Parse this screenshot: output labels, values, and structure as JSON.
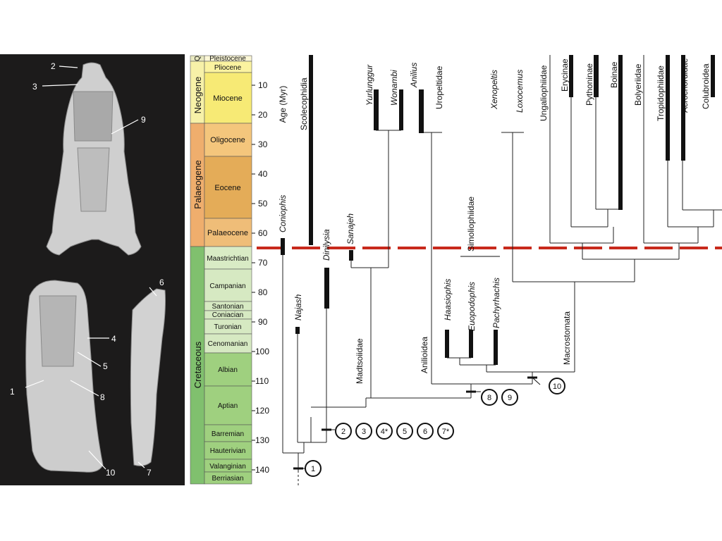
{
  "skull_panel": {
    "labels": [
      "1",
      "2",
      "3",
      "4",
      "5",
      "6",
      "7",
      "8",
      "9",
      "10"
    ]
  },
  "timescale": {
    "periods": [
      "Neogene",
      "Palaeogene",
      "Cretaceous"
    ],
    "q_label": "Q",
    "epochs": [
      "Pleistocene",
      "Pliocene",
      "Miocene",
      "Oligocene",
      "Eocene",
      "Palaeocene"
    ],
    "stages": [
      "Maastrichtian",
      "Campanian",
      "Santonian",
      "Coniacian",
      "Turonian",
      "Cenomanian",
      "Albian",
      "Aptian",
      "Barremian",
      "Hauterivian",
      "Valanginian",
      "Berriasian"
    ],
    "ticks": [
      "10",
      "20",
      "30",
      "40",
      "50",
      "60",
      "70",
      "80",
      "90",
      "100",
      "110",
      "120",
      "130",
      "140"
    ],
    "axis_label": "Age (Myr)",
    "colors": {
      "neogene": "#f7f1a8",
      "palaeogene": "#efae6d",
      "palaeogene_epoch": "#dcae62",
      "cretaceous": "#80c06e",
      "cret_light": "#c8e3b3",
      "boundary_line": "#c8291c"
    }
  },
  "taxa": {
    "coniophis": "Coniophis",
    "scolecophidia": "Scolecophidia",
    "najash": "Najash",
    "dinilysia": "Dinilysia",
    "sanajeh": "Sanajeh",
    "yurlunggur": "Yurlunggur",
    "wonambi": "Wonambi",
    "anilius": "Anilius",
    "uropeltidae": "Uropeltidae",
    "haasiophis": "Haasiophis",
    "eupodophis": "Euopodophis",
    "pachyrhachis": "Pachyrhachis",
    "xenopeltis": "Xenopeltis",
    "loxocemus": "Loxocemus",
    "ungaliophiidae": "Ungaliophiidae",
    "erycinae": "Erycinae",
    "pythoninae": "Pythoninae",
    "boinae": "Boinae",
    "bolyeriidae": "Bolyeriidae",
    "tropidophiidae": "Tropidophiidae",
    "acrochordidae": "Acrochordidae",
    "colubroidea": "Colubroidea"
  },
  "clades": {
    "madtsoiidae": "Madtsoiidae",
    "anilioidea": "Anilioidea",
    "simoliophiidae": "Simoliophiidae",
    "macrostomata": "Macrostomata"
  },
  "characters": [
    "1",
    "2",
    "3",
    "4*",
    "5",
    "6",
    "7*",
    "8",
    "9",
    "10"
  ]
}
